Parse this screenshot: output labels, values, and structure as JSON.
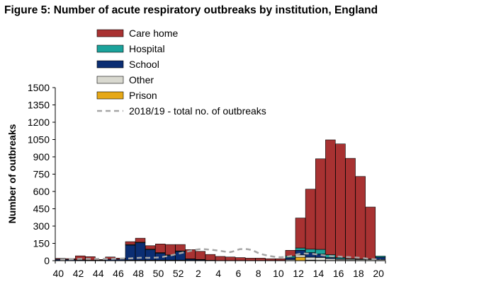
{
  "chart_data": {
    "type": "bar",
    "stacked": true,
    "title": "Figure 5: Number of acute respiratory outbreaks by institution, England",
    "xlabel": "",
    "ylabel": "Number of outbreaks",
    "ylim": [
      0,
      1500
    ],
    "yticks": [
      0,
      150,
      300,
      450,
      600,
      750,
      900,
      1050,
      1200,
      1350,
      1500
    ],
    "categories": [
      40,
      41,
      42,
      43,
      44,
      45,
      46,
      47,
      48,
      49,
      50,
      51,
      52,
      1,
      2,
      3,
      4,
      5,
      6,
      7,
      8,
      9,
      10,
      11,
      12,
      13,
      14,
      15,
      16,
      17,
      18,
      19,
      20
    ],
    "xtick_labels": [
      "40",
      "42",
      "44",
      "46",
      "48",
      "50",
      "52",
      "2",
      "4",
      "6",
      "8",
      "10",
      "12",
      "14",
      "16",
      "18",
      "20"
    ],
    "series": [
      {
        "name": "Prison",
        "color": "#E6A817",
        "values": [
          0,
          0,
          0,
          0,
          0,
          0,
          0,
          0,
          0,
          0,
          0,
          0,
          0,
          0,
          0,
          0,
          0,
          0,
          0,
          0,
          0,
          0,
          0,
          0,
          30,
          5,
          3,
          2,
          2,
          2,
          0,
          0,
          0
        ]
      },
      {
        "name": "Other",
        "color": "#D9D9D0",
        "values": [
          2,
          2,
          2,
          2,
          0,
          2,
          2,
          5,
          5,
          5,
          5,
          5,
          5,
          3,
          3,
          2,
          2,
          2,
          2,
          2,
          2,
          2,
          2,
          10,
          20,
          25,
          25,
          15,
          10,
          10,
          10,
          10,
          10
        ]
      },
      {
        "name": "School",
        "color": "#0B2E73",
        "values": [
          10,
          8,
          5,
          3,
          5,
          10,
          10,
          130,
          150,
          90,
          60,
          40,
          75,
          10,
          5,
          0,
          0,
          0,
          0,
          0,
          0,
          0,
          0,
          15,
          40,
          40,
          30,
          10,
          5,
          0,
          0,
          0,
          20
        ]
      },
      {
        "name": "Hospital",
        "color": "#1BA39C",
        "values": [
          0,
          0,
          0,
          0,
          0,
          0,
          0,
          5,
          5,
          5,
          5,
          5,
          5,
          3,
          3,
          2,
          0,
          0,
          0,
          0,
          0,
          0,
          0,
          15,
          20,
          30,
          40,
          25,
          10,
          5,
          5,
          5,
          10
        ]
      },
      {
        "name": "Care home",
        "color": "#A83232",
        "values": [
          8,
          8,
          35,
          30,
          5,
          20,
          10,
          25,
          35,
          30,
          75,
          90,
          55,
          80,
          70,
          50,
          35,
          30,
          25,
          20,
          20,
          15,
          15,
          50,
          260,
          520,
          785,
          995,
          985,
          870,
          715,
          450,
          0
        ]
      }
    ],
    "comparison_series": {
      "name": "2018/19 - total no. of outbreaks",
      "style": "dashed",
      "color": "#A6A6A6",
      "values": [
        10,
        12,
        15,
        15,
        15,
        15,
        18,
        20,
        25,
        25,
        30,
        45,
        65,
        85,
        100,
        95,
        85,
        75,
        100,
        95,
        60,
        40,
        30,
        40,
        60,
        60,
        50,
        40,
        35,
        30,
        25,
        15,
        10
      ]
    },
    "legend_position": "top-left"
  }
}
